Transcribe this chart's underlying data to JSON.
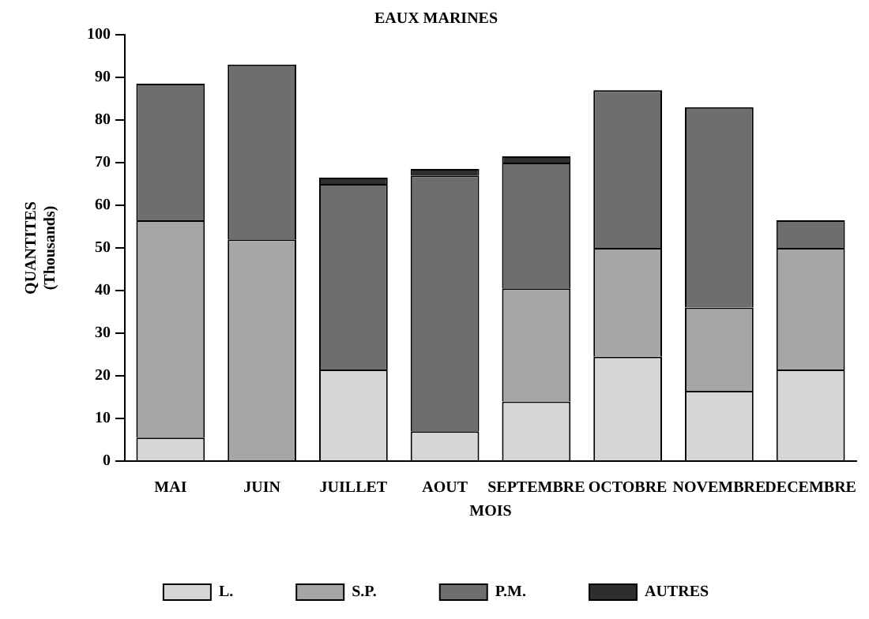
{
  "chart_data": {
    "type": "bar",
    "title": "EAUX MARINES",
    "xlabel": "MOIS",
    "ylabel": "QUANTITES\n(Thousands)",
    "stacked": true,
    "legend": "bottom",
    "grid": false,
    "categories": [
      "MAI",
      "JUIN",
      "JUILLET",
      "AOUT",
      "SEPTEMBRE",
      "OCTOBRE",
      "NOVEMBRE",
      "DECEMBRE"
    ],
    "ylim": [
      0,
      100
    ],
    "yticks": [
      0,
      10,
      20,
      30,
      40,
      50,
      60,
      70,
      80,
      90,
      100
    ],
    "series": [
      {
        "name": "L.",
        "color": "#d6d6d6",
        "values": [
          5.5,
          0,
          21.5,
          7,
          14,
          24.5,
          16.5,
          21.5
        ]
      },
      {
        "name": "S.P.",
        "color": "#a6a6a6",
        "values": [
          51,
          52,
          0,
          0,
          26.5,
          25.5,
          19.5,
          28.5
        ]
      },
      {
        "name": "P.M.",
        "color": "#6e6e6e",
        "values": [
          32,
          41,
          43.5,
          60,
          29.5,
          37,
          47,
          6.5
        ]
      },
      {
        "name": "AUTRES",
        "color": "#2e2e2e",
        "values": [
          0,
          0,
          1.5,
          1.5,
          1.5,
          0,
          0,
          0
        ]
      }
    ]
  }
}
